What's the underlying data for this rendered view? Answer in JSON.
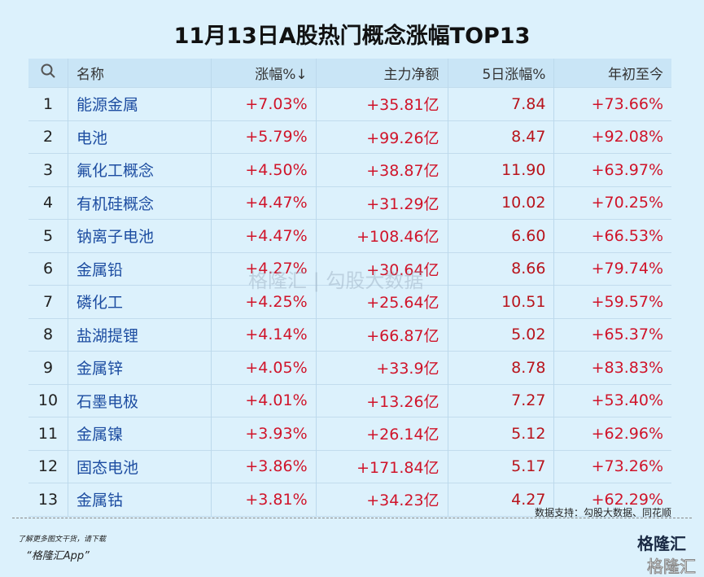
{
  "title": "11月13日A股热门概念涨幅TOP13",
  "header": {
    "search_icon": "search-icon",
    "name": "名称",
    "change": "涨幅%↓",
    "net": "主力净额",
    "d5": "5日涨幅%",
    "ytd": "年初至今"
  },
  "rows": [
    {
      "idx": "1",
      "name": "能源金属",
      "change": "+7.03%",
      "net": "+35.81亿",
      "d5": "7.84",
      "ytd": "+73.66%"
    },
    {
      "idx": "2",
      "name": "电池",
      "change": "+5.79%",
      "net": "+99.26亿",
      "d5": "8.47",
      "ytd": "+92.08%"
    },
    {
      "idx": "3",
      "name": "氟化工概念",
      "change": "+4.50%",
      "net": "+38.87亿",
      "d5": "11.90",
      "ytd": "+63.97%"
    },
    {
      "idx": "4",
      "name": "有机硅概念",
      "change": "+4.47%",
      "net": "+31.29亿",
      "d5": "10.02",
      "ytd": "+70.25%"
    },
    {
      "idx": "5",
      "name": "钠离子电池",
      "change": "+4.47%",
      "net": "+108.46亿",
      "d5": "6.60",
      "ytd": "+66.53%"
    },
    {
      "idx": "6",
      "name": "金属铅",
      "change": "+4.27%",
      "net": "+30.64亿",
      "d5": "8.66",
      "ytd": "+79.74%"
    },
    {
      "idx": "7",
      "name": "磷化工",
      "change": "+4.25%",
      "net": "+25.64亿",
      "d5": "10.51",
      "ytd": "+59.57%"
    },
    {
      "idx": "8",
      "name": "盐湖提锂",
      "change": "+4.14%",
      "net": "+66.87亿",
      "d5": "5.02",
      "ytd": "+65.37%"
    },
    {
      "idx": "9",
      "name": "金属锌",
      "change": "+4.05%",
      "net": "+33.9亿",
      "d5": "8.78",
      "ytd": "+83.83%"
    },
    {
      "idx": "10",
      "name": "石墨电极",
      "change": "+4.01%",
      "net": "+13.26亿",
      "d5": "7.27",
      "ytd": "+53.40%"
    },
    {
      "idx": "11",
      "name": "金属镍",
      "change": "+3.93%",
      "net": "+26.14亿",
      "d5": "5.12",
      "ytd": "+62.96%"
    },
    {
      "idx": "12",
      "name": "固态电池",
      "change": "+3.86%",
      "net": "+171.84亿",
      "d5": "5.17",
      "ytd": "+73.26%"
    },
    {
      "idx": "13",
      "name": "金属钴",
      "change": "+3.81%",
      "net": "+34.23亿",
      "d5": "4.27",
      "ytd": "+62.29%"
    }
  ],
  "watermark": "格隆汇 | 勾股大数据",
  "source": "数据支持：勾股大数据、同花顺",
  "footer": {
    "more": "了解更多图文干货，请下载",
    "app": "“格隆汇App”",
    "logo": "格隆汇"
  }
}
